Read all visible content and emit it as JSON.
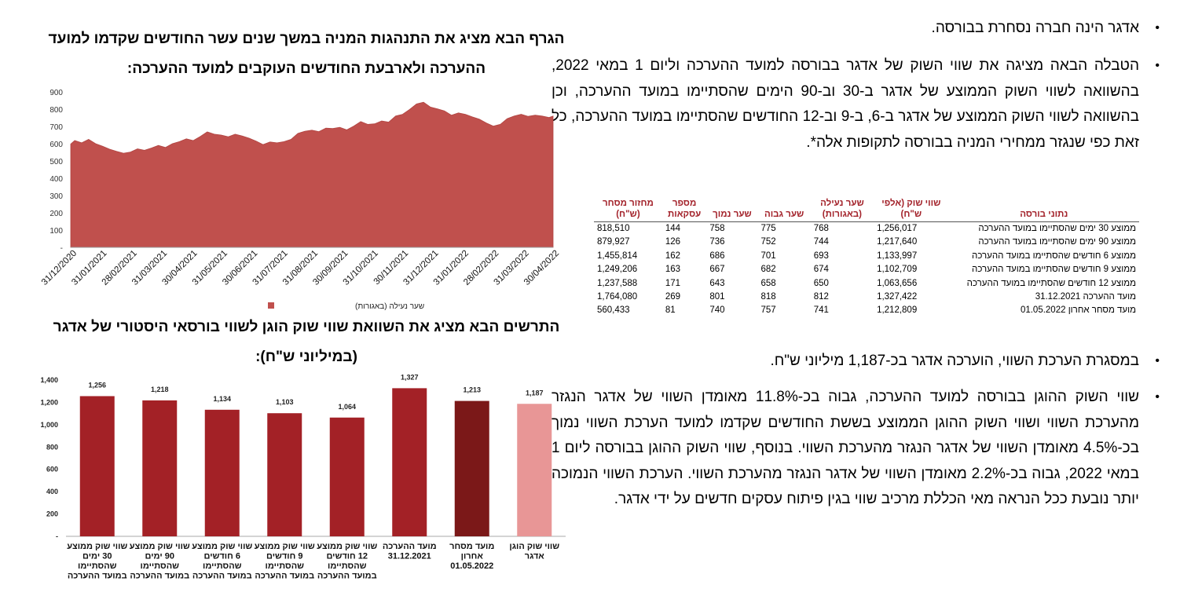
{
  "right_column": {
    "bullet_1": "אדגר הינה חברה נסחרת בבורסה.",
    "bullet_2": "הטבלה הבאה מציגה את שווי השוק של אדגר בבורסה למועד ההערכה וליום 1 במאי 2022, בהשוואה לשווי השוק הממוצע של אדגר ב-30 וב-90 הימים שהסתיימו במועד ההערכה, וכן בהשוואה לשווי השוק הממוצע של אדגר ב-6, ב-9 וב-12 החודשים שהסתיימו במועד ההערכה, כל זאת כפי שנגזר ממחירי המניה בבורסה לתקופות אלה*.",
    "bullet_3": "במסגרת הערכת השווי, הוערכה אדגר בכ-1,187 מיליוני ש\"ח.",
    "bullet_4": "שווי השוק ההוגן בבורסה למועד ההערכה, גבוה בכ-11.8% מאומדן השווי של אדגר הנגזר מהערכת השווי ושווי השוק ההוגן הממוצע בששת החודשים שקדמו למועד הערכת השווי נמוך בכ-4.5% מאומדן השווי של אדגר הנגזר מהערכת השווי. בנוסף, שווי השוק ההוגן בבורסה ליום 1 במאי 2022, גבוה בכ-2.2% מאומדן השווי של אדגר הנגזר מהערכת השווי. הערכת השווי הנמוכה יותר נובעת ככל הנראה מאי הכללת מרכיב שווי בגין פיתוח עסקים חדשים על ידי אדגר.",
    "bullet_symbol": "•"
  },
  "table": {
    "headers": [
      "נתוני בורסה",
      "שווי שוק (אלפי ש\"ח)",
      "שער נעילה (באגורות)",
      "שער גבוה",
      "שער נמוך",
      "מספר עסקאות",
      "מחזור מסחר (ש\"ח)"
    ],
    "rows": [
      [
        "ממוצע 30 ימים שהסתיימו במועד ההערכה",
        "1,256,017",
        "768",
        "775",
        "758",
        "144",
        "818,510"
      ],
      [
        "ממוצע 90 ימים שהסתיימו במועד ההערכה",
        "1,217,640",
        "744",
        "752",
        "736",
        "126",
        "879,927"
      ],
      [
        "ממוצע 6 חודשים שהסתיימו במועד ההערכה",
        "1,133,997",
        "693",
        "701",
        "686",
        "162",
        "1,455,814"
      ],
      [
        "ממוצע 9 חודשים שהסתיימו במועד ההערכה",
        "1,102,709",
        "674",
        "682",
        "667",
        "163",
        "1,249,206"
      ],
      [
        "ממוצע 12 חודשים שהסתיימו במועד ההערכה",
        "1,063,656",
        "650",
        "658",
        "643",
        "171",
        "1,237,588"
      ],
      [
        "מועד ההערכה 31.12.2021",
        "1,327,422",
        "812",
        "818",
        "801",
        "269",
        "1,764,080"
      ],
      [
        "מועד מסחר אחרון 01.05.2022",
        "1,212,809",
        "741",
        "757",
        "740",
        "81",
        "560,433"
      ]
    ]
  },
  "chart1_title": "הגרף הבא מציג את התנהגות המניה במשך שנים עשר החודשים שקדמו למועד ההערכה ולארבעת החודשים העוקבים למועד ההערכה:",
  "chart2_title": "התרשים הבא מציג את השוואת שווי שוק הוגן לשווי בורסאי היסטורי של אדגר (במיליוני ש\"ח):",
  "chart_data": [
    {
      "type": "area",
      "x_ticks": [
        "31/12/2020",
        "31/01/2021",
        "28/02/2021",
        "31/03/2021",
        "30/04/2021",
        "31/05/2021",
        "30/06/2021",
        "31/07/2021",
        "31/08/2021",
        "30/09/2021",
        "31/10/2021",
        "30/11/2021",
        "31/12/2021",
        "31/01/2022",
        "28/02/2022",
        "31/03/2022",
        "30/04/2022"
      ],
      "y_ticks": [
        "-",
        "100",
        "200",
        "300",
        "400",
        "500",
        "600",
        "700",
        "800",
        "900"
      ],
      "ylim": [
        0,
        900
      ],
      "grid": false,
      "legend": "bottom",
      "color": "#c0504d",
      "series": [
        {
          "name": "שער נעילה (באגורות)",
          "points": [
            [
              "2020-12-31",
              598
            ],
            [
              "2021-01-04",
              618
            ],
            [
              "2021-01-11",
              605
            ],
            [
              "2021-01-18",
              625
            ],
            [
              "2021-01-25",
              600
            ],
            [
              "2021-02-01",
              585
            ],
            [
              "2021-02-08",
              568
            ],
            [
              "2021-02-15",
              556
            ],
            [
              "2021-02-22",
              545
            ],
            [
              "2021-03-01",
              552
            ],
            [
              "2021-03-08",
              570
            ],
            [
              "2021-03-15",
              562
            ],
            [
              "2021-03-22",
              575
            ],
            [
              "2021-03-29",
              590
            ],
            [
              "2021-04-05",
              578
            ],
            [
              "2021-04-12",
              600
            ],
            [
              "2021-04-19",
              612
            ],
            [
              "2021-04-26",
              628
            ],
            [
              "2021-05-03",
              618
            ],
            [
              "2021-05-10",
              642
            ],
            [
              "2021-05-17",
              668
            ],
            [
              "2021-05-24",
              655
            ],
            [
              "2021-05-31",
              650
            ],
            [
              "2021-06-07",
              640
            ],
            [
              "2021-06-14",
              655
            ],
            [
              "2021-06-21",
              645
            ],
            [
              "2021-06-28",
              632
            ],
            [
              "2021-07-05",
              615
            ],
            [
              "2021-07-12",
              595
            ],
            [
              "2021-07-19",
              610
            ],
            [
              "2021-07-26",
              605
            ],
            [
              "2021-08-02",
              612
            ],
            [
              "2021-08-09",
              625
            ],
            [
              "2021-08-16",
              660
            ],
            [
              "2021-08-23",
              672
            ],
            [
              "2021-08-30",
              678
            ],
            [
              "2021-09-06",
              670
            ],
            [
              "2021-09-13",
              690
            ],
            [
              "2021-09-20",
              688
            ],
            [
              "2021-09-27",
              695
            ],
            [
              "2021-10-04",
              680
            ],
            [
              "2021-10-11",
              702
            ],
            [
              "2021-10-18",
              728
            ],
            [
              "2021-10-25",
              712
            ],
            [
              "2021-11-01",
              715
            ],
            [
              "2021-11-08",
              732
            ],
            [
              "2021-11-15",
              725
            ],
            [
              "2021-11-22",
              760
            ],
            [
              "2021-11-29",
              770
            ],
            [
              "2021-12-06",
              798
            ],
            [
              "2021-12-13",
              830
            ],
            [
              "2021-12-20",
              840
            ],
            [
              "2021-12-27",
              812
            ],
            [
              "2022-01-03",
              802
            ],
            [
              "2022-01-10",
              790
            ],
            [
              "2022-01-17",
              765
            ],
            [
              "2022-01-24",
              778
            ],
            [
              "2022-01-31",
              770
            ],
            [
              "2022-02-07",
              755
            ],
            [
              "2022-02-14",
              742
            ],
            [
              "2022-02-21",
              720
            ],
            [
              "2022-02-28",
              702
            ],
            [
              "2022-03-07",
              712
            ],
            [
              "2022-03-14",
              745
            ],
            [
              "2022-03-21",
              760
            ],
            [
              "2022-03-28",
              770
            ],
            [
              "2022-04-04",
              758
            ],
            [
              "2022-04-11",
              765
            ],
            [
              "2022-04-18",
              760
            ],
            [
              "2022-04-25",
              752
            ],
            [
              "2022-04-29",
              760
            ]
          ]
        }
      ]
    },
    {
      "type": "bar",
      "categories": [
        "שווי שוק ממוצע 30 ימים שהסתיימו במועד ההערכה",
        "שווי שוק ממוצע 90 ימים שהסתיימו במועד ההערכה",
        "שווי שוק ממוצע 6 חודשים שהסתיימו במועד ההערכה",
        "שווי שוק ממוצע 9 חודשים שהסתיימו במועד ההערכה",
        "שווי שוק ממוצע 12 חודשים שהסתיימו במועד ההערכה",
        "מועד ההערכה 31.12.2021",
        "מועד מסחר אחרון 01.05.2022",
        "שווי שוק הוגן אדגר"
      ],
      "category_lines": [
        [
          "שווי שוק ממוצע",
          "30 ימים",
          "שהסתיימו",
          "במועד ההערכה"
        ],
        [
          "שווי שוק ממוצע",
          "90 ימים",
          "שהסתיימו",
          "במועד ההערכה"
        ],
        [
          "שווי שוק ממוצע",
          "6 חודשים",
          "שהסתיימו",
          "במועד ההערכה"
        ],
        [
          "שווי שוק ממוצע",
          "9 חודשים",
          "שהסתיימו",
          "במועד ההערכה"
        ],
        [
          "שווי שוק ממוצע",
          "12 חודשים",
          "שהסתיימו",
          "במועד ההערכה"
        ],
        [
          "מועד ההערכה",
          "31.12.2021"
        ],
        [
          "מועד מסחר",
          "אחרון",
          "01.05.2022"
        ],
        [
          "שווי שוק הוגן",
          "אדגר"
        ]
      ],
      "values": [
        1256,
        1218,
        1134,
        1103,
        1064,
        1327,
        1213,
        1187
      ],
      "data_labels": [
        "1,256",
        "1,218",
        "1,134",
        "1,103",
        "1,064",
        "1,327",
        "1,213",
        "1,187"
      ],
      "y_ticks": [
        "-",
        "200",
        "400",
        "600",
        "800",
        "1,000",
        "1,200",
        "1,400"
      ],
      "ylim": [
        0,
        1400
      ],
      "grid": false,
      "bar_colors": [
        "#a32126",
        "#a32126",
        "#a32126",
        "#a32126",
        "#a32126",
        "#a32126",
        "#7b1818",
        "#e89696"
      ]
    }
  ]
}
